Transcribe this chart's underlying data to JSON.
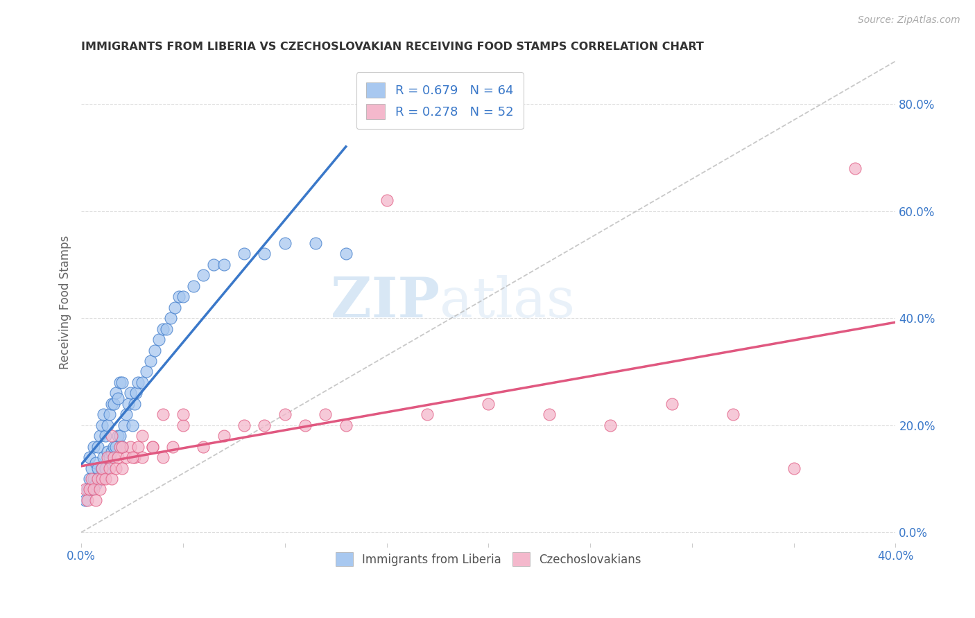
{
  "title": "IMMIGRANTS FROM LIBERIA VS CZECHOSLOVAKIAN RECEIVING FOOD STAMPS CORRELATION CHART",
  "source": "Source: ZipAtlas.com",
  "ylabel": "Receiving Food Stamps",
  "xlim": [
    0.0,
    0.4
  ],
  "ylim": [
    -0.02,
    0.88
  ],
  "xticks": [
    0.0,
    0.05,
    0.1,
    0.15,
    0.2,
    0.25,
    0.3,
    0.35,
    0.4
  ],
  "xtick_labels": [
    "0.0%",
    "",
    "",
    "",
    "",
    "",
    "",
    "",
    "40.0%"
  ],
  "ytick_labels_right": [
    "0.0%",
    "20.0%",
    "40.0%",
    "60.0%",
    "80.0%"
  ],
  "yticks_right": [
    0.0,
    0.2,
    0.4,
    0.6,
    0.8
  ],
  "blue_color": "#a8c8f0",
  "pink_color": "#f4b8cc",
  "blue_line_color": "#3a78c9",
  "pink_line_color": "#e05880",
  "legend_R1": "R = 0.679",
  "legend_N1": "N = 64",
  "legend_R2": "R = 0.278",
  "legend_N2": "N = 52",
  "legend_text_color": "#3a78c9",
  "title_color": "#333333",
  "watermark_zip": "ZIP",
  "watermark_atlas": "atlas",
  "blue_scatter_x": [
    0.002,
    0.003,
    0.004,
    0.004,
    0.005,
    0.005,
    0.006,
    0.006,
    0.007,
    0.007,
    0.008,
    0.008,
    0.009,
    0.009,
    0.01,
    0.01,
    0.011,
    0.011,
    0.012,
    0.012,
    0.013,
    0.013,
    0.014,
    0.014,
    0.015,
    0.015,
    0.016,
    0.016,
    0.017,
    0.017,
    0.018,
    0.018,
    0.019,
    0.019,
    0.02,
    0.02,
    0.021,
    0.022,
    0.023,
    0.024,
    0.025,
    0.026,
    0.027,
    0.028,
    0.03,
    0.032,
    0.034,
    0.036,
    0.038,
    0.04,
    0.042,
    0.044,
    0.046,
    0.048,
    0.05,
    0.055,
    0.06,
    0.065,
    0.07,
    0.08,
    0.09,
    0.1,
    0.115,
    0.13
  ],
  "blue_scatter_y": [
    0.06,
    0.08,
    0.1,
    0.14,
    0.08,
    0.12,
    0.1,
    0.16,
    0.09,
    0.13,
    0.12,
    0.16,
    0.1,
    0.18,
    0.12,
    0.2,
    0.14,
    0.22,
    0.12,
    0.18,
    0.15,
    0.2,
    0.14,
    0.22,
    0.15,
    0.24,
    0.16,
    0.24,
    0.16,
    0.26,
    0.18,
    0.25,
    0.18,
    0.28,
    0.16,
    0.28,
    0.2,
    0.22,
    0.24,
    0.26,
    0.2,
    0.24,
    0.26,
    0.28,
    0.28,
    0.3,
    0.32,
    0.34,
    0.36,
    0.38,
    0.38,
    0.4,
    0.42,
    0.44,
    0.44,
    0.46,
    0.48,
    0.5,
    0.5,
    0.52,
    0.52,
    0.54,
    0.54,
    0.52
  ],
  "pink_scatter_x": [
    0.002,
    0.003,
    0.004,
    0.005,
    0.006,
    0.007,
    0.008,
    0.009,
    0.01,
    0.01,
    0.012,
    0.013,
    0.014,
    0.015,
    0.016,
    0.017,
    0.018,
    0.019,
    0.02,
    0.022,
    0.024,
    0.026,
    0.028,
    0.03,
    0.035,
    0.04,
    0.045,
    0.05,
    0.06,
    0.07,
    0.08,
    0.09,
    0.1,
    0.11,
    0.12,
    0.13,
    0.15,
    0.17,
    0.2,
    0.23,
    0.26,
    0.29,
    0.32,
    0.35,
    0.38,
    0.015,
    0.02,
    0.025,
    0.03,
    0.035,
    0.04,
    0.05
  ],
  "pink_scatter_y": [
    0.08,
    0.06,
    0.08,
    0.1,
    0.08,
    0.06,
    0.1,
    0.08,
    0.1,
    0.12,
    0.1,
    0.14,
    0.12,
    0.1,
    0.14,
    0.12,
    0.14,
    0.16,
    0.12,
    0.14,
    0.16,
    0.14,
    0.16,
    0.14,
    0.16,
    0.22,
    0.16,
    0.2,
    0.16,
    0.18,
    0.2,
    0.2,
    0.22,
    0.2,
    0.22,
    0.2,
    0.62,
    0.22,
    0.24,
    0.22,
    0.2,
    0.24,
    0.22,
    0.12,
    0.68,
    0.18,
    0.16,
    0.14,
    0.18,
    0.16,
    0.14,
    0.22
  ]
}
